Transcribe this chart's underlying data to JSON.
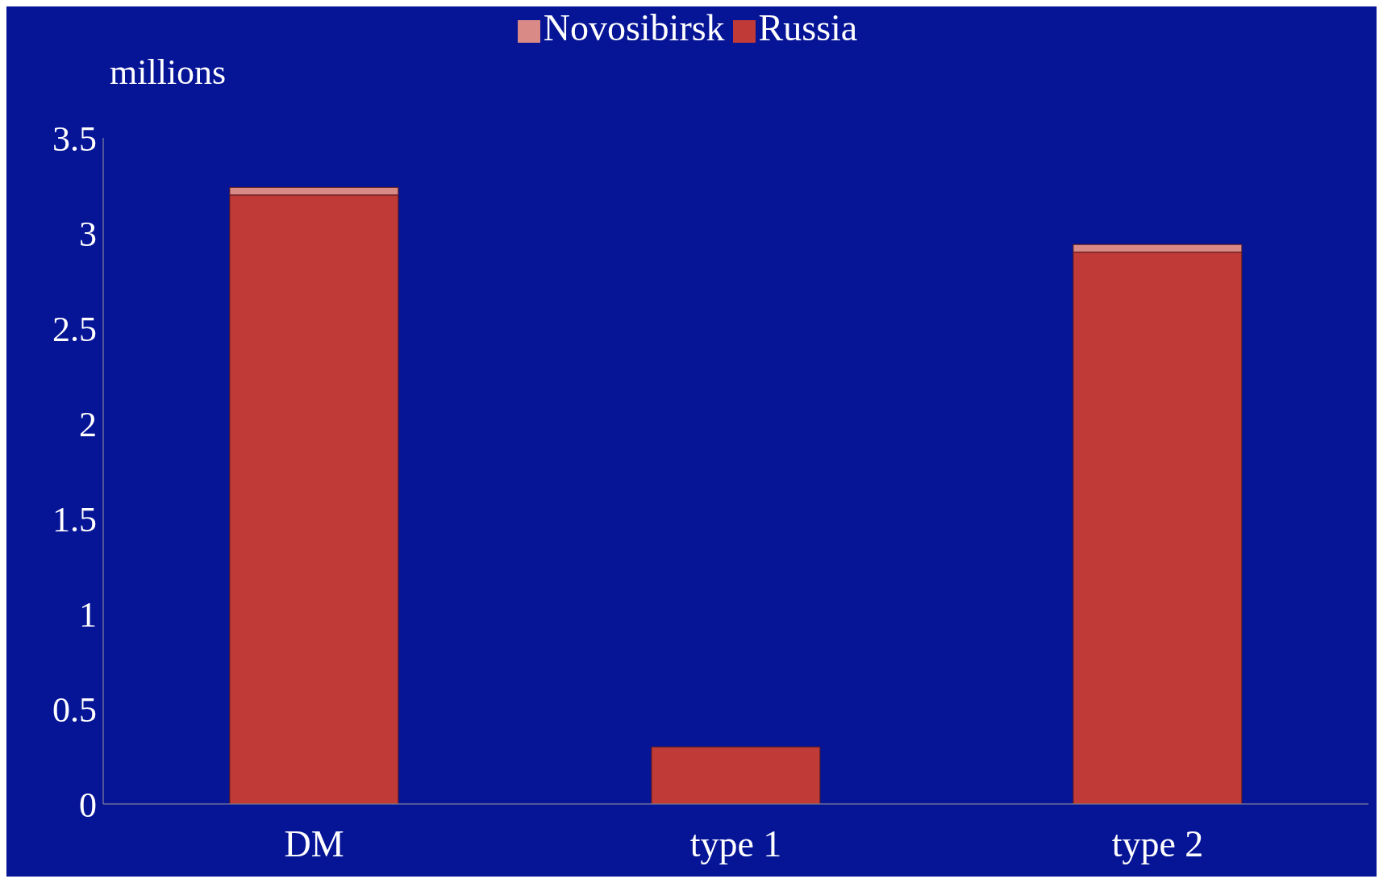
{
  "chart_data": {
    "type": "bar",
    "stacked": true,
    "ylabel": "millions",
    "categories": [
      "DM",
      "type 1",
      "type 2"
    ],
    "series": [
      {
        "name": "Russia",
        "color": "#c03a38",
        "values": [
          3.2,
          0.3,
          2.9
        ]
      },
      {
        "name": "Novosibirsk",
        "color": "#d98a86",
        "values": [
          0.04,
          null,
          0.04
        ]
      }
    ],
    "ylim": [
      0,
      3.5
    ],
    "yticks": [
      0,
      0.5,
      1,
      1.5,
      2,
      2.5,
      3,
      3.5
    ],
    "grid": false,
    "legend": "top"
  }
}
